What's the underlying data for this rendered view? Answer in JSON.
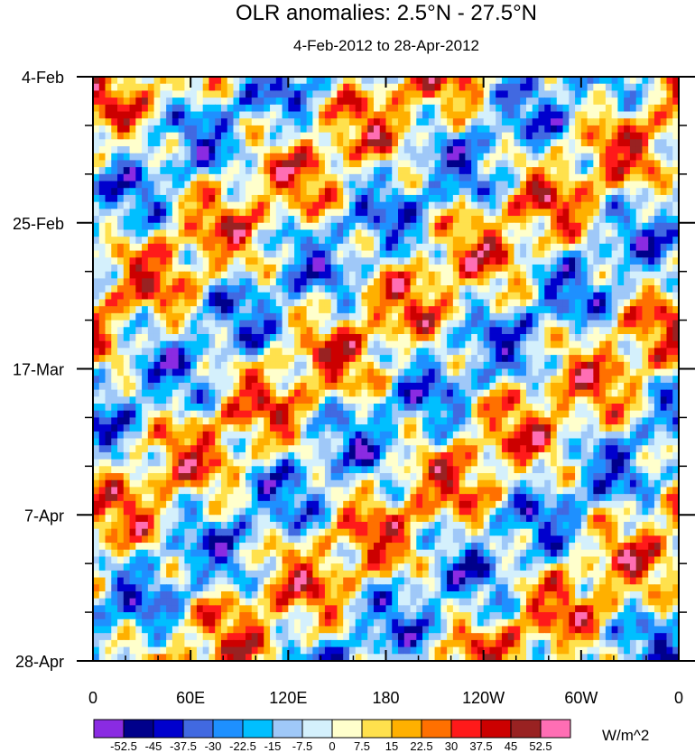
{
  "chart_data": {
    "type": "heatmap",
    "title": "OLR anomalies: 2.5°N - 27.5°N",
    "subtitle": "4-Feb-2012 to 28-Apr-2012",
    "x_ticks": [
      "0",
      "60E",
      "120E",
      "180",
      "120W",
      "60W",
      "0"
    ],
    "x_tick_lon": [
      0,
      60,
      120,
      180,
      240,
      300,
      360
    ],
    "x_range": [
      0,
      360
    ],
    "y_ticks": [
      "4-Feb",
      "25-Feb",
      "17-Mar",
      "7-Apr",
      "28-Apr"
    ],
    "y_tick_day": [
      0,
      21,
      42,
      63,
      84
    ],
    "y_range": [
      0,
      84
    ],
    "units": "W/m^2",
    "colorbar": {
      "labels": [
        "-52.5",
        "-45",
        "-37.5",
        "-30",
        "-22.5",
        "-15",
        "-7.5",
        "0",
        "7.5",
        "15",
        "22.5",
        "30",
        "37.5",
        "45",
        "52.5"
      ],
      "levels": [
        -52.5,
        -45,
        -37.5,
        -30,
        -22.5,
        -15,
        -7.5,
        0,
        7.5,
        15,
        22.5,
        30,
        37.5,
        45,
        52.5
      ],
      "colors": [
        "#8a2be2",
        "#00008b",
        "#0000cd",
        "#4169e1",
        "#1e90ff",
        "#00bfff",
        "#9fc8f8",
        "#d4f0fc",
        "#ffffcc",
        "#ffe14d",
        "#ffb000",
        "#ff7000",
        "#ff1a1a",
        "#cc0000",
        "#992222",
        "#ff6eb4"
      ]
    }
  }
}
